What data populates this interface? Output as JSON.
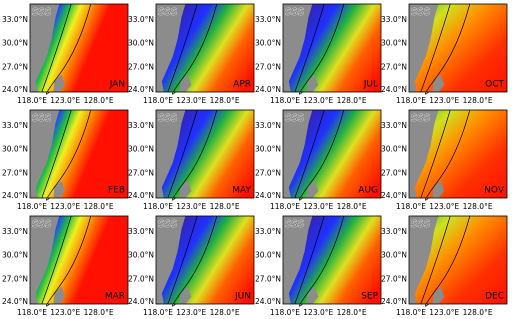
{
  "tag": "SSS",
  "months": [
    "JAN",
    "APR",
    "JUL",
    "OCT",
    "FEB",
    "MAY",
    "AUG",
    "NOV",
    "MAR",
    "JUN",
    "SEP",
    "DEC"
  ],
  "yticks": [
    "33.0°N",
    "30.0°N",
    "27.0°N",
    "24.0°N"
  ],
  "xticks": [
    "118.0°E",
    "123.0°E",
    "128.0°E"
  ]
}
